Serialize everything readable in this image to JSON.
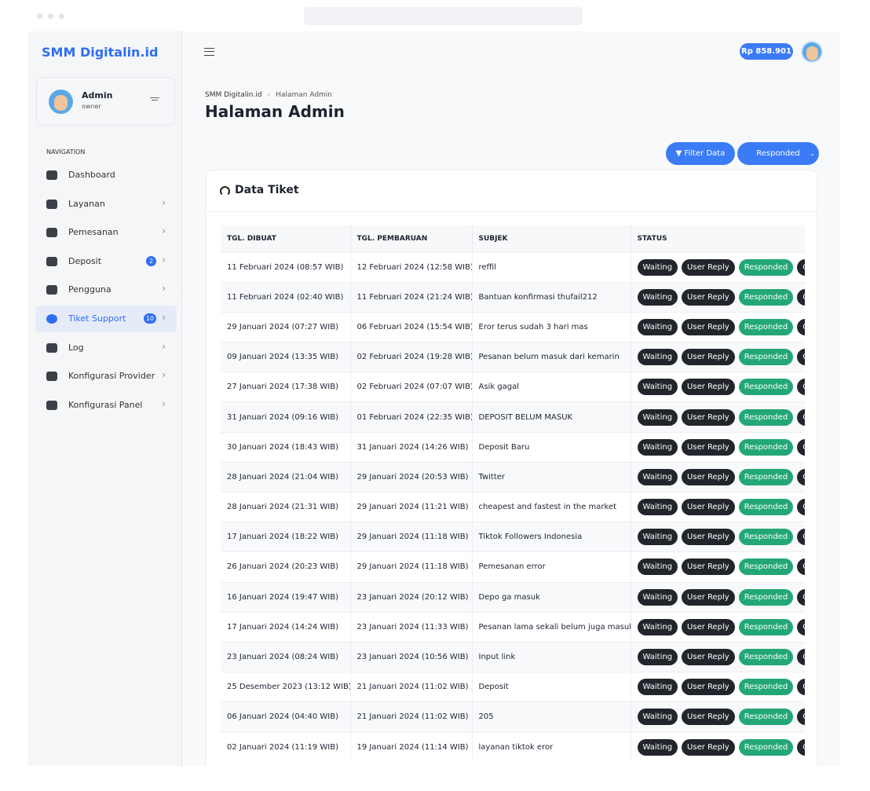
{
  "brand": "SMM Digitalin.id",
  "user": {
    "name": "Admin",
    "role": "owner"
  },
  "nav": {
    "heading": "NAVIGATION",
    "items": [
      {
        "label": "Dashboard"
      },
      {
        "label": "Layanan"
      },
      {
        "label": "Pemesanan"
      },
      {
        "label": "Deposit",
        "badge": "2"
      },
      {
        "label": "Pengguna"
      },
      {
        "label": "Tiket Support",
        "badge": "10"
      },
      {
        "label": "Log"
      },
      {
        "label": "Konfigurasi Provider"
      },
      {
        "label": "Konfigurasi Panel"
      }
    ]
  },
  "header": {
    "balance": "Rp 858.901"
  },
  "breadcrumb": [
    "SMM Digitalin.id",
    "Halaman Admin"
  ],
  "page_title": "Halaman Admin",
  "toolbar": {
    "filter": "Filter Data",
    "select": "Responded"
  },
  "card_title": "Data Tiket",
  "table": {
    "headers": [
      "TGL. DIBUAT",
      "TGL. PEMBARUAN",
      "SUBJEK",
      "STATUS"
    ],
    "status_options": [
      "Waiting",
      "User Reply",
      "Responded",
      "Closed"
    ],
    "rows": [
      [
        "11 Februari 2024 (08:57 WIB)",
        "12 Februari 2024 (12:58 WIB)",
        "reffil"
      ],
      [
        "11 Februari 2024 (02:40 WIB)",
        "11 Februari 2024 (21:24 WIB)",
        "Bantuan konfirmasi thufail212"
      ],
      [
        "29 Januari 2024 (07:27 WIB)",
        "06 Februari 2024 (15:54 WIB)",
        "Eror terus sudah 3 hari mas"
      ],
      [
        "09 Januari 2024 (13:35 WIB)",
        "02 Februari 2024 (19:28 WIB)",
        "Pesanan belum masuk dari kemarin"
      ],
      [
        "27 Januari 2024 (17:38 WIB)",
        "02 Februari 2024 (07:07 WIB)",
        "Asik gagal"
      ],
      [
        "31 Januari 2024 (09:16 WIB)",
        "01 Februari 2024 (22:35 WIB)",
        "DEPOSIT BELUM MASUK"
      ],
      [
        "30 Januari 2024 (18:43 WIB)",
        "31 Januari 2024 (14:26 WIB)",
        "Deposit Baru"
      ],
      [
        "28 Januari 2024 (21:04 WIB)",
        "29 Januari 2024 (20:53 WIB)",
        "Twitter"
      ],
      [
        "28 Januari 2024 (21:31 WIB)",
        "29 Januari 2024 (11:21 WIB)",
        "cheapest and fastest in the market"
      ],
      [
        "17 Januari 2024 (18:22 WIB)",
        "29 Januari 2024 (11:18 WIB)",
        "Tiktok Followers Indonesia"
      ],
      [
        "26 Januari 2024 (20:23 WIB)",
        "29 Januari 2024 (11:18 WIB)",
        "Pemesanan error"
      ],
      [
        "16 Januari 2024 (19:47 WIB)",
        "23 Januari 2024 (20:12 WIB)",
        "Depo ga masuk"
      ],
      [
        "17 Januari 2024 (14:24 WIB)",
        "23 Januari 2024 (11:33 WIB)",
        "Pesanan lama sekali belum juga masuk"
      ],
      [
        "23 Januari 2024 (08:24 WIB)",
        "23 Januari 2024 (10:56 WIB)",
        "Input link"
      ],
      [
        "25 Desember 2023 (13:12 WIB)",
        "21 Januari 2024 (11:02 WIB)",
        "Deposit"
      ],
      [
        "06 Januari 2024 (04:40 WIB)",
        "21 Januari 2024 (11:02 WIB)",
        "205"
      ],
      [
        "02 Januari 2024 (11:19 WIB)",
        "19 Januari 2024 (11:14 WIB)",
        "layanan tiktok eror"
      ]
    ]
  }
}
